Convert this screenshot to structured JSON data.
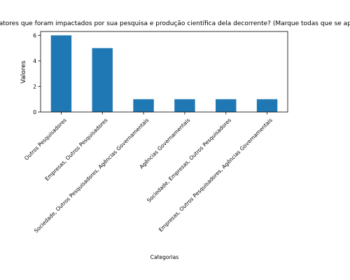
{
  "chart_data": {
    "type": "bar",
    "title": "Quais atores que foram impactados por sua pesquisa e produção científica dela decorrente? (Marque todas que se aplicam)",
    "xlabel": "Categorias",
    "ylabel": "Valores",
    "categories": [
      "Outros Pesquisadores",
      "Empresas, Outros Pesquisadores",
      "Sociedade, Outros Pesquisadores, Agências Governamentais",
      "Agências Governamentais",
      "Sociedade, Empresas, Outros Pesquisadores",
      "Empresas, Outros Pesquisadores, Agências Governamentais"
    ],
    "values": [
      6,
      5,
      1,
      1,
      1,
      1
    ],
    "ylim": [
      0,
      6.3
    ],
    "yticks": [
      0,
      2,
      4,
      6
    ],
    "bar_color": "#1f77b4",
    "grid": false,
    "legend": "none"
  }
}
